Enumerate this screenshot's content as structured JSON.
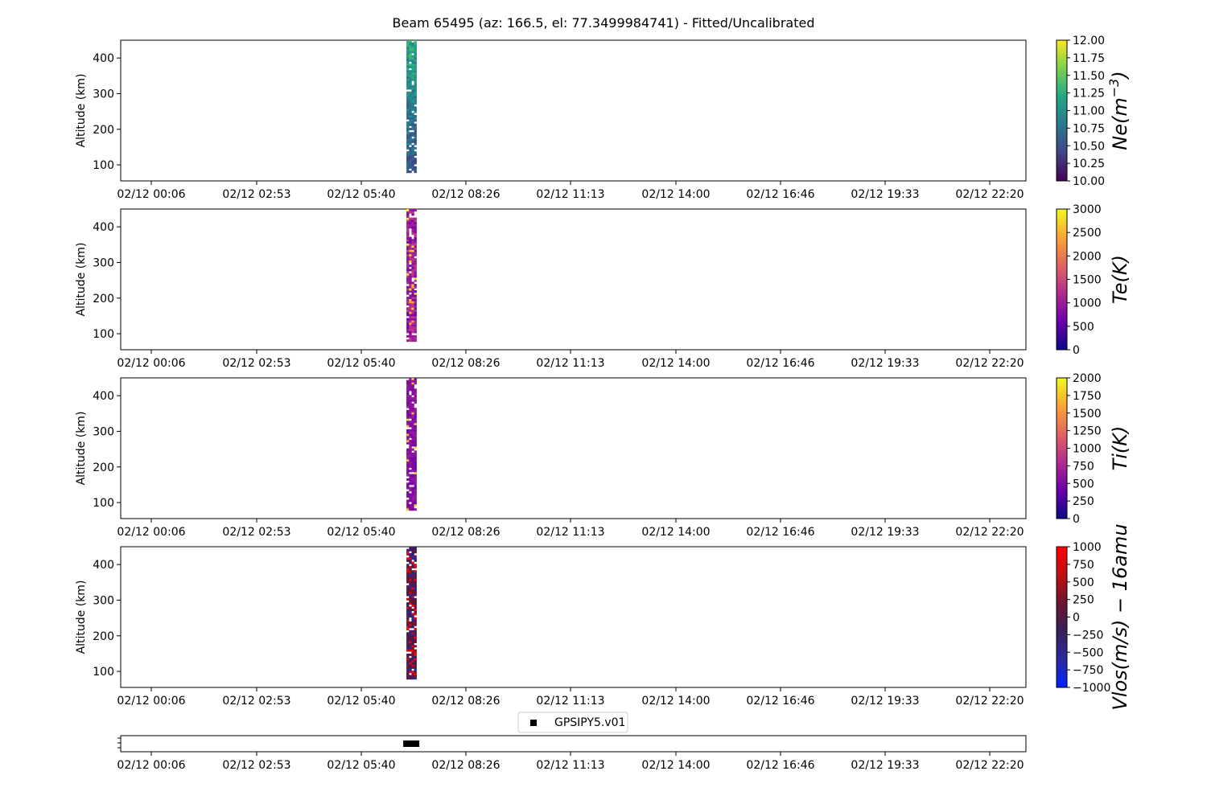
{
  "figure_title": "Beam 65495 (az: 166.5, el: 77.3499984741) - Fitted/Uncalibrated",
  "time_ticks": [
    "02/12 00:06",
    "02/12 02:53",
    "02/12 05:40",
    "02/12 08:26",
    "02/12 11:13",
    "02/12 14:00",
    "02/12 16:46",
    "02/12 19:33",
    "02/12 22:20"
  ],
  "legend_label": "GPSIPY5.v01",
  "chart_data": [
    {
      "type": "heatmap",
      "ylabel": "Altitude (km)",
      "x_ticks": [
        "02/12 00:06",
        "02/12 02:53",
        "02/12 05:40",
        "02/12 08:26",
        "02/12 11:13",
        "02/12 14:00",
        "02/12 16:46",
        "02/12 19:33",
        "02/12 22:20"
      ],
      "y_ticks": [
        "100",
        "200",
        "300",
        "400"
      ],
      "ylim": [
        55,
        450
      ],
      "data_time_range": [
        "02/12 06:52",
        "02/12 07:08"
      ],
      "altitude_range": [
        78,
        450
      ],
      "colorbar": {
        "label": "Ne(m^-3)",
        "label_base": "Ne(m",
        "label_exp": "−3",
        "label_close": ")",
        "range": [
          10.0,
          12.0
        ],
        "ticks": [
          "10.00",
          "10.25",
          "10.50",
          "10.75",
          "11.00",
          "11.25",
          "11.50",
          "11.75",
          "12.00"
        ],
        "colormap": "viridis",
        "colors": [
          "#440154",
          "#414487",
          "#2a788e",
          "#22a884",
          "#7ad151",
          "#fde725"
        ]
      }
    },
    {
      "type": "heatmap",
      "ylabel": "Altitude (km)",
      "x_ticks": [
        "02/12 00:06",
        "02/12 02:53",
        "02/12 05:40",
        "02/12 08:26",
        "02/12 11:13",
        "02/12 14:00",
        "02/12 16:46",
        "02/12 19:33",
        "02/12 22:20"
      ],
      "y_ticks": [
        "100",
        "200",
        "300",
        "400"
      ],
      "ylim": [
        55,
        450
      ],
      "data_time_range": [
        "02/12 06:52",
        "02/12 07:08"
      ],
      "altitude_range": [
        78,
        450
      ],
      "colorbar": {
        "label": "Te(K)",
        "range": [
          0,
          3000
        ],
        "ticks": [
          "0",
          "500",
          "1000",
          "1500",
          "2000",
          "2500",
          "3000"
        ],
        "colormap": "plasma",
        "colors": [
          "#0d0887",
          "#6a00a8",
          "#b12a90",
          "#e16462",
          "#fca636",
          "#f0f921"
        ]
      }
    },
    {
      "type": "heatmap",
      "ylabel": "Altitude (km)",
      "x_ticks": [
        "02/12 00:06",
        "02/12 02:53",
        "02/12 05:40",
        "02/12 08:26",
        "02/12 11:13",
        "02/12 14:00",
        "02/12 16:46",
        "02/12 19:33",
        "02/12 22:20"
      ],
      "y_ticks": [
        "100",
        "200",
        "300",
        "400"
      ],
      "ylim": [
        55,
        450
      ],
      "data_time_range": [
        "02/12 06:52",
        "02/12 07:08"
      ],
      "altitude_range": [
        78,
        450
      ],
      "colorbar": {
        "label": "Ti(K)",
        "range": [
          0,
          2000
        ],
        "ticks": [
          "0",
          "250",
          "500",
          "750",
          "1000",
          "1250",
          "1500",
          "1750",
          "2000"
        ],
        "colormap": "plasma",
        "colors": [
          "#0d0887",
          "#6a00a8",
          "#b12a90",
          "#e16462",
          "#fca636",
          "#f0f921"
        ]
      }
    },
    {
      "type": "heatmap",
      "ylabel": "Altitude (km)",
      "x_ticks": [
        "02/12 00:06",
        "02/12 02:53",
        "02/12 05:40",
        "02/12 08:26",
        "02/12 11:13",
        "02/12 14:00",
        "02/12 16:46",
        "02/12 19:33",
        "02/12 22:20"
      ],
      "y_ticks": [
        "100",
        "200",
        "300",
        "400"
      ],
      "ylim": [
        55,
        450
      ],
      "data_time_range": [
        "02/12 06:52",
        "02/12 07:08"
      ],
      "altitude_range": [
        78,
        450
      ],
      "colorbar": {
        "label": "Vlos(m/s) − 16amu",
        "range": [
          -1000,
          1000
        ],
        "ticks": [
          "−1000",
          "−750",
          "−500",
          "−250",
          "0",
          "250",
          "500",
          "750",
          "1000"
        ],
        "colormap": "blue-dark-red diverging",
        "colors": [
          "#0022ff",
          "#2a2aa0",
          "#3a1f5a",
          "#6a1530",
          "#c01010",
          "#ff0000"
        ]
      }
    },
    {
      "type": "scatter",
      "x_ticks": [
        "02/12 00:06",
        "02/12 02:53",
        "02/12 05:40",
        "02/12 08:26",
        "02/12 11:13",
        "02/12 14:00",
        "02/12 16:46",
        "02/12 19:33",
        "02/12 22:20"
      ],
      "series": [
        {
          "name": "GPSIPY5.v01",
          "x_range": [
            "02/12 06:52",
            "02/12 07:08"
          ],
          "marker": "square",
          "color": "#000000"
        }
      ]
    }
  ]
}
